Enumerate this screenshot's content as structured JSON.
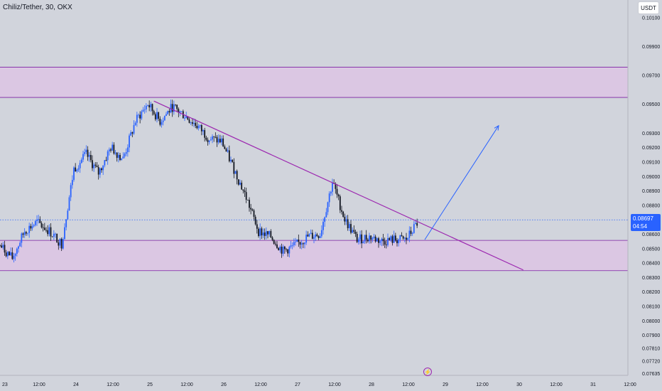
{
  "header": {
    "title": "Chiliz/Tether, 30, OKX",
    "currency_button": "USDT"
  },
  "price_tag": {
    "price": "0.08697",
    "countdown": "04:54"
  },
  "event_icon": "lightning-icon",
  "colors": {
    "background": "#d1d4dc",
    "up_candle": "#2962ff",
    "down_candle": "#131722",
    "zone_fill": "#e1bee7",
    "zone_line": "#7b1fa2",
    "trendline": "#9c27b0",
    "arrow": "#2962ff",
    "dotted_line": "#2962ff"
  },
  "chart_data": {
    "type": "candlestick",
    "symbol": "Chiliz/Tether",
    "interval": "30",
    "exchange": "OKX",
    "ylim": [
      0.0762,
      0.1022
    ],
    "y_ticks": [
      "0.10100",
      "0.09900",
      "0.09700",
      "0.09500",
      "0.09300",
      "0.09200",
      "0.09100",
      "0.09000",
      "0.08900",
      "0.08800",
      "0.08600",
      "0.08500",
      "0.08400",
      "0.08300",
      "0.08200",
      "0.08100",
      "0.08000",
      "0.07900",
      "0.07810",
      "0.07720",
      "0.07635"
    ],
    "x_ticks": [
      "23",
      "12:00",
      "24",
      "12:00",
      "25",
      "12:00",
      "26",
      "12:00",
      "27",
      "12:00",
      "28",
      "12:00",
      "29",
      "12:00",
      "30",
      "12:00",
      "31",
      "12:00"
    ],
    "current_price": 0.08697,
    "zones": [
      {
        "top": 0.09755,
        "bottom": 0.09545
      },
      {
        "top": 0.08555,
        "bottom": 0.08345
      }
    ],
    "trendline": {
      "start": [
        "25 02:00",
        0.0952
      ],
      "end": [
        "30 02:00",
        0.0835
      ]
    },
    "projection_arrow": {
      "start": [
        "28 18:00",
        0.0856
      ],
      "end": [
        "29 18:00",
        0.0935
      ]
    },
    "close_path": [
      [
        "23 00:00",
        0.0852
      ],
      [
        "23 04:00",
        0.0843
      ],
      [
        "23 08:00",
        0.0862
      ],
      [
        "23 12:00",
        0.0868
      ],
      [
        "23 16:00",
        0.0862
      ],
      [
        "23 20:00",
        0.0853
      ],
      [
        "24 00:00",
        0.0905
      ],
      [
        "24 04:00",
        0.0915
      ],
      [
        "24 08:00",
        0.0902
      ],
      [
        "24 12:00",
        0.092
      ],
      [
        "24 16:00",
        0.0912
      ],
      [
        "24 20:00",
        0.0938
      ],
      [
        "25 00:00",
        0.095
      ],
      [
        "25 04:00",
        0.0938
      ],
      [
        "25 08:00",
        0.0948
      ],
      [
        "25 12:00",
        0.0942
      ],
      [
        "25 16:00",
        0.0935
      ],
      [
        "25 20:00",
        0.0926
      ],
      [
        "26 00:00",
        0.0924
      ],
      [
        "26 04:00",
        0.0905
      ],
      [
        "26 08:00",
        0.0885
      ],
      [
        "26 12:00",
        0.0862
      ],
      [
        "26 16:00",
        0.0858
      ],
      [
        "26 20:00",
        0.0848
      ],
      [
        "27 00:00",
        0.0852
      ],
      [
        "27 04:00",
        0.0858
      ],
      [
        "27 08:00",
        0.086
      ],
      [
        "27 12:00",
        0.0896
      ],
      [
        "27 16:00",
        0.087
      ],
      [
        "27 20:00",
        0.0856
      ],
      [
        "28 00:00",
        0.0858
      ],
      [
        "28 04:00",
        0.0855
      ],
      [
        "28 08:00",
        0.0856
      ],
      [
        "28 12:00",
        0.0856
      ],
      [
        "28 16:00",
        0.0869
      ]
    ]
  }
}
